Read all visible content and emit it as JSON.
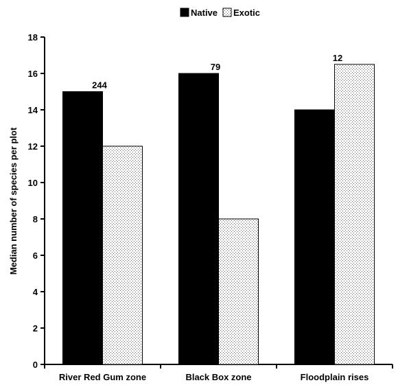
{
  "chart_data": {
    "type": "bar",
    "categories": [
      "River Red Gum zone",
      "Black Box zone",
      "Floodplain rises"
    ],
    "series": [
      {
        "name": "Native",
        "values": [
          15,
          16,
          14
        ],
        "color": "#000000",
        "fill": "solid"
      },
      {
        "name": "Exotic",
        "values": [
          12,
          8,
          16.5
        ],
        "color": "#ffffff",
        "fill": "dotted"
      }
    ],
    "annotations": [
      "244",
      "79",
      "12"
    ],
    "ylabel": "Median number of species per plot",
    "xlabel": "",
    "ylim": [
      0,
      18
    ],
    "yticks": [
      0,
      2,
      4,
      6,
      8,
      10,
      12,
      14,
      16,
      18
    ],
    "grid": false,
    "legend_position": "top-center"
  }
}
